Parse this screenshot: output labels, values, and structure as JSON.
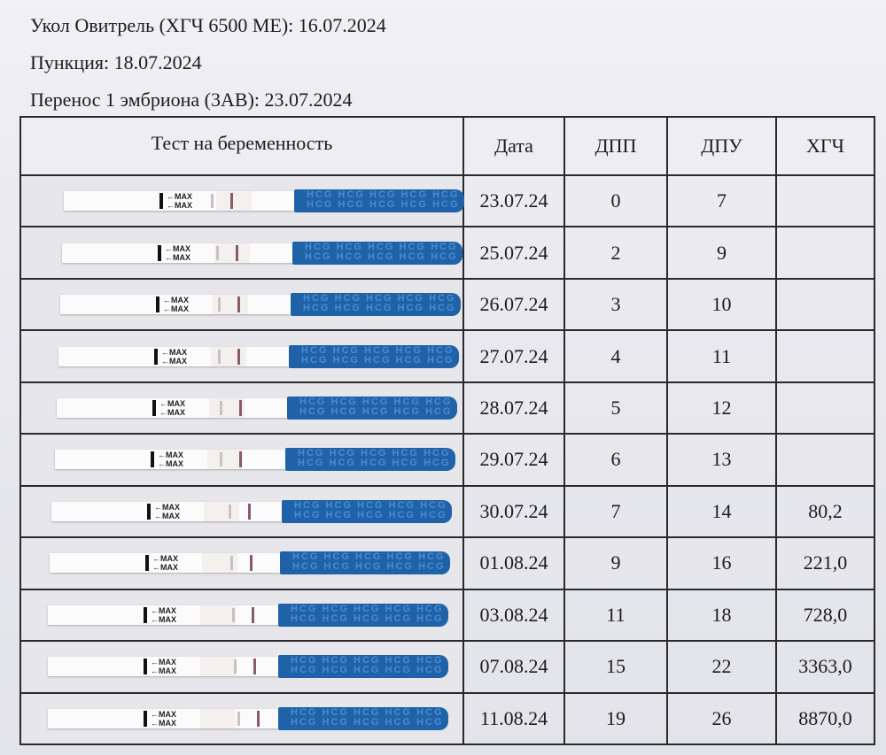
{
  "header": {
    "line1": "Укол Овитрель (ХГЧ 6500 МЕ): 16.07.2024",
    "line2": "Пункция: 18.07.2024",
    "line3": "Перенос 1 эмбриона (3АВ): 23.07.2024"
  },
  "table": {
    "columns": {
      "test": "Тест на беременность",
      "date": "Дата",
      "dpp": "ДПП",
      "dpu": "ДПУ",
      "hcg": "ХГЧ"
    },
    "strip_text": {
      "max": "←MAX",
      "hcg": "HCG"
    },
    "rows": [
      {
        "date": "23.07.24",
        "dpp": "0",
        "dpu": "7",
        "hcg": ""
      },
      {
        "date": "25.07.24",
        "dpp": "2",
        "dpu": "9",
        "hcg": ""
      },
      {
        "date": "26.07.24",
        "dpp": "3",
        "dpu": "10",
        "hcg": ""
      },
      {
        "date": "27.07.24",
        "dpp": "4",
        "dpu": "11",
        "hcg": ""
      },
      {
        "date": "28.07.24",
        "dpp": "5",
        "dpu": "12",
        "hcg": ""
      },
      {
        "date": "29.07.24",
        "dpp": "6",
        "dpu": "13",
        "hcg": ""
      },
      {
        "date": "30.07.24",
        "dpp": "7",
        "dpu": "14",
        "hcg": "80,2"
      },
      {
        "date": "01.08.24",
        "dpp": "9",
        "dpu": "16",
        "hcg": "221,0"
      },
      {
        "date": "03.08.24",
        "dpp": "11",
        "dpu": "18",
        "hcg": "728,0"
      },
      {
        "date": "07.08.24",
        "dpp": "15",
        "dpu": "22",
        "hcg": "3363,0"
      },
      {
        "date": "11.08.24",
        "dpp": "19",
        "dpu": "26",
        "hcg": "8870,0"
      }
    ]
  },
  "colors": {
    "strip_blue": "#1f62a8",
    "control_line": "#8a5a6c"
  }
}
